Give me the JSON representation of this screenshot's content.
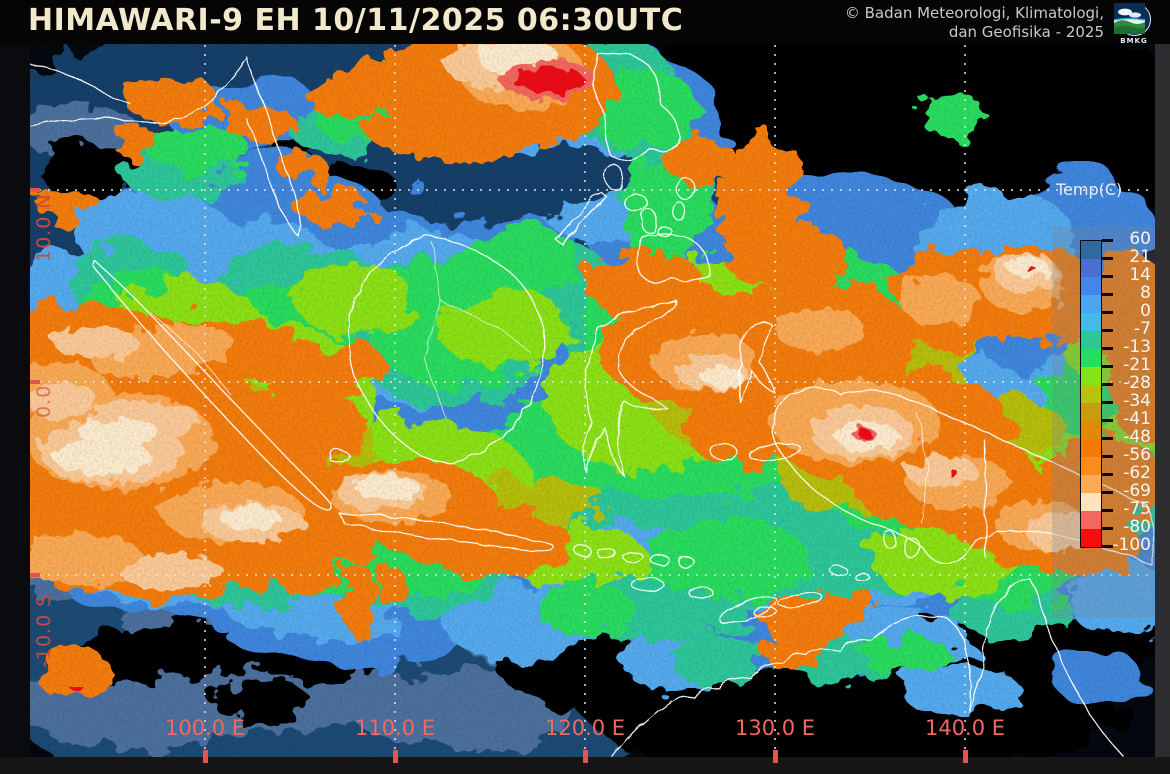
{
  "header": {
    "title": "HIMAWARI-9 EH 10/11/2025  06:30UTC",
    "copyright_line1": "© Badan Meteorologi, Klimatologi,",
    "copyright_line2": "dan Geofisika -  2025",
    "logo_text": "BMKG"
  },
  "colorbar": {
    "title": "Temp(C)",
    "tick_labels": [
      "60",
      "21",
      "14",
      "8",
      "0",
      "-7",
      "-13",
      "-21",
      "-28",
      "-34",
      "-41",
      "-48",
      "-56",
      "-62",
      "-69",
      "-75",
      "-80",
      "-100"
    ],
    "segment_colors": [
      "#2e6a9e",
      "#4a6fd0",
      "#4287e8",
      "#4aa6f0",
      "#47b9e8",
      "#2cc795",
      "#25dd60",
      "#84e515",
      "#b6c20c",
      "#c89c10",
      "#e08a0a",
      "#f47a08",
      "#fa8c1e",
      "#fbaa55",
      "#fde3c0",
      "#f2685e",
      "#fb0d0d"
    ]
  },
  "axes": {
    "longitude_labels": [
      "100.0 E",
      "110.0 E",
      "120.0 E",
      "130.0 E",
      "140.0 E"
    ],
    "latitude_labels": [
      "10.0 N",
      "0.0",
      "-10.0 S"
    ]
  },
  "colors": {
    "longitude_label": "#ef6a60",
    "latitude_label": "#cc4940",
    "title_text": "#f2e9cd",
    "copyright_text": "#c9c9c9",
    "grid_dots": "#e6e6e6",
    "axis_tick": "#e2544c"
  }
}
